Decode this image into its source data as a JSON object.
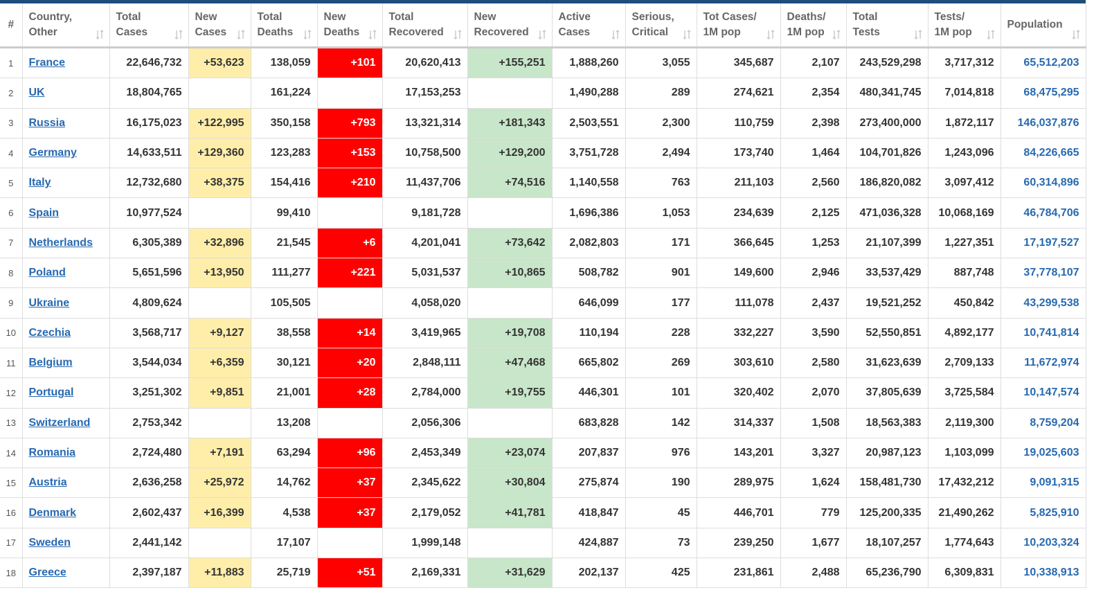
{
  "table": {
    "headers": [
      "#",
      "Country,\nOther",
      "Total\nCases",
      "New\nCases",
      "Total\nDeaths",
      "New\nDeaths",
      "Total\nRecovered",
      "New\nRecovered",
      "Active\nCases",
      "Serious,\nCritical",
      "Tot Cases/\n1M pop",
      "Deaths/\n1M pop",
      "Total\nTests",
      "Tests/\n1M pop",
      "Population"
    ],
    "rows": [
      [
        "1",
        "France",
        "22,646,732",
        "+53,623",
        "138,059",
        "+101",
        "20,620,413",
        "+155,251",
        "1,888,260",
        "3,055",
        "345,687",
        "2,107",
        "243,529,298",
        "3,717,312",
        "65,512,203"
      ],
      [
        "2",
        "UK",
        "18,804,765",
        null,
        "161,224",
        null,
        "17,153,253",
        null,
        "1,490,288",
        "289",
        "274,621",
        "2,354",
        "480,341,745",
        "7,014,818",
        "68,475,295"
      ],
      [
        "3",
        "Russia",
        "16,175,023",
        "+122,995",
        "350,158",
        "+793",
        "13,321,314",
        "+181,343",
        "2,503,551",
        "2,300",
        "110,759",
        "2,398",
        "273,400,000",
        "1,872,117",
        "146,037,876"
      ],
      [
        "4",
        "Germany",
        "14,633,511",
        "+129,360",
        "123,283",
        "+153",
        "10,758,500",
        "+129,200",
        "3,751,728",
        "2,494",
        "173,740",
        "1,464",
        "104,701,826",
        "1,243,096",
        "84,226,665"
      ],
      [
        "5",
        "Italy",
        "12,732,680",
        "+38,375",
        "154,416",
        "+210",
        "11,437,706",
        "+74,516",
        "1,140,558",
        "763",
        "211,103",
        "2,560",
        "186,820,082",
        "3,097,412",
        "60,314,896"
      ],
      [
        "6",
        "Spain",
        "10,977,524",
        null,
        "99,410",
        null,
        "9,181,728",
        null,
        "1,696,386",
        "1,053",
        "234,639",
        "2,125",
        "471,036,328",
        "10,068,169",
        "46,784,706"
      ],
      [
        "7",
        "Netherlands",
        "6,305,389",
        "+32,896",
        "21,545",
        "+6",
        "4,201,041",
        "+73,642",
        "2,082,803",
        "171",
        "366,645",
        "1,253",
        "21,107,399",
        "1,227,351",
        "17,197,527"
      ],
      [
        "8",
        "Poland",
        "5,651,596",
        "+13,950",
        "111,277",
        "+221",
        "5,031,537",
        "+10,865",
        "508,782",
        "901",
        "149,600",
        "2,946",
        "33,537,429",
        "887,748",
        "37,778,107"
      ],
      [
        "9",
        "Ukraine",
        "4,809,624",
        null,
        "105,505",
        null,
        "4,058,020",
        null,
        "646,099",
        "177",
        "111,078",
        "2,437",
        "19,521,252",
        "450,842",
        "43,299,538"
      ],
      [
        "10",
        "Czechia",
        "3,568,717",
        "+9,127",
        "38,558",
        "+14",
        "3,419,965",
        "+19,708",
        "110,194",
        "228",
        "332,227",
        "3,590",
        "52,550,851",
        "4,892,177",
        "10,741,814"
      ],
      [
        "11",
        "Belgium",
        "3,544,034",
        "+6,359",
        "30,121",
        "+20",
        "2,848,111",
        "+47,468",
        "665,802",
        "269",
        "303,610",
        "2,580",
        "31,623,639",
        "2,709,133",
        "11,672,974"
      ],
      [
        "12",
        "Portugal",
        "3,251,302",
        "+9,851",
        "21,001",
        "+28",
        "2,784,000",
        "+19,755",
        "446,301",
        "101",
        "320,402",
        "2,070",
        "37,805,639",
        "3,725,584",
        "10,147,574"
      ],
      [
        "13",
        "Switzerland",
        "2,753,342",
        null,
        "13,208",
        null,
        "2,056,306",
        null,
        "683,828",
        "142",
        "314,337",
        "1,508",
        "18,563,383",
        "2,119,300",
        "8,759,204"
      ],
      [
        "14",
        "Romania",
        "2,724,480",
        "+7,191",
        "63,294",
        "+96",
        "2,453,349",
        "+23,074",
        "207,837",
        "976",
        "143,201",
        "3,327",
        "20,987,123",
        "1,103,099",
        "19,025,603"
      ],
      [
        "15",
        "Austria",
        "2,636,258",
        "+25,972",
        "14,762",
        "+37",
        "2,345,622",
        "+30,804",
        "275,874",
        "190",
        "289,975",
        "1,624",
        "158,481,730",
        "17,432,212",
        "9,091,315"
      ],
      [
        "16",
        "Denmark",
        "2,602,437",
        "+16,399",
        "4,538",
        "+37",
        "2,179,052",
        "+41,781",
        "418,847",
        "45",
        "446,701",
        "779",
        "125,200,335",
        "21,490,262",
        "5,825,910"
      ],
      [
        "17",
        "Sweden",
        "2,441,142",
        null,
        "17,107",
        null,
        "1,999,148",
        null,
        "424,887",
        "73",
        "239,250",
        "1,677",
        "18,107,257",
        "1,774,643",
        "10,203,324"
      ],
      [
        "18",
        "Greece",
        "2,397,187",
        "+11,883",
        "25,719",
        "+51",
        "2,169,331",
        "+31,629",
        "202,137",
        "425",
        "231,861",
        "2,488",
        "65,236,790",
        "6,309,831",
        "10,338,913"
      ]
    ]
  }
}
